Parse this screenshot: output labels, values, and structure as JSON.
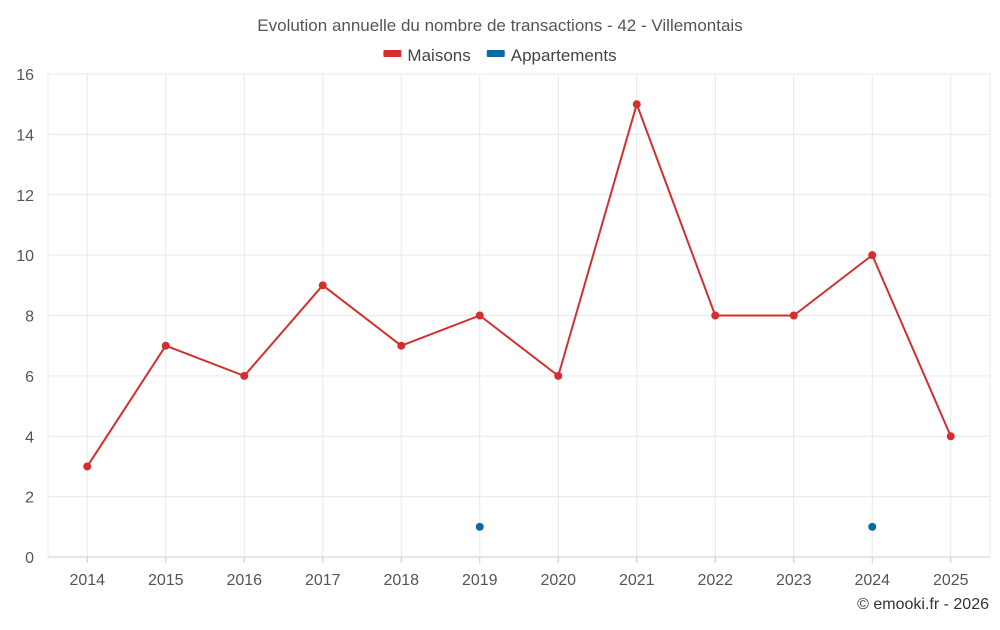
{
  "chart_data": {
    "type": "line",
    "title": "Evolution annuelle du nombre de transactions - 42 - Villemontais",
    "x": [
      "2014",
      "2015",
      "2016",
      "2017",
      "2018",
      "2019",
      "2020",
      "2021",
      "2022",
      "2023",
      "2024",
      "2025"
    ],
    "ylim": [
      0,
      16
    ],
    "yticks": [
      0,
      2,
      4,
      6,
      8,
      10,
      12,
      14,
      16
    ],
    "grid": true,
    "legend_position": "top-center",
    "series": [
      {
        "name": "Maisons",
        "color": "#d32f2f",
        "values": [
          3,
          7,
          6,
          9,
          7,
          8,
          6,
          15,
          8,
          8,
          10,
          4
        ]
      },
      {
        "name": "Appartements",
        "color": "#0a6aa1",
        "values": [
          null,
          null,
          null,
          null,
          null,
          1,
          null,
          null,
          null,
          null,
          1,
          null
        ]
      }
    ]
  },
  "footer": {
    "credit": "© emooki.fr - 2026"
  }
}
